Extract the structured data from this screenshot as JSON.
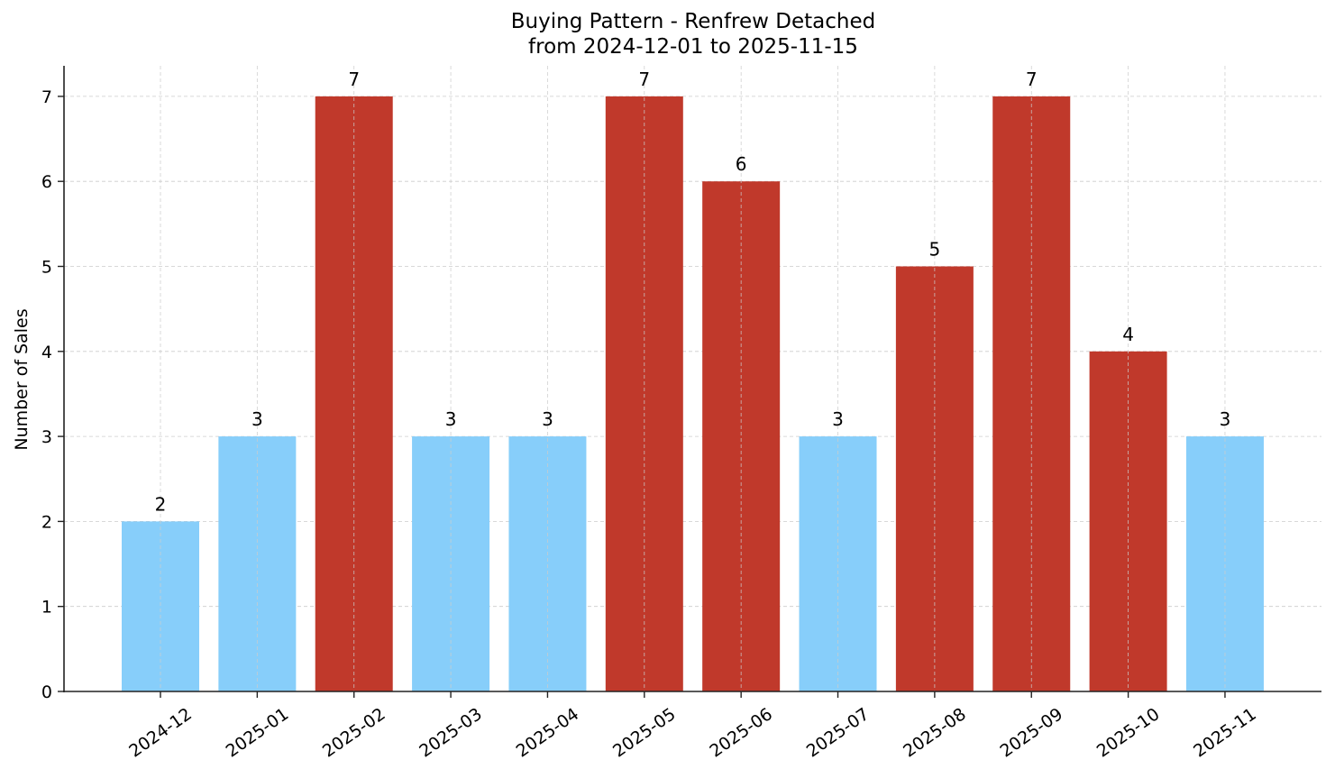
{
  "chart_data": {
    "type": "bar",
    "title": "Buying Pattern - Renfrew Detached",
    "subtitle": "from 2024-12-01 to 2025-11-15",
    "xlabel": "",
    "ylabel": "Number of Sales",
    "categories": [
      "2024-12",
      "2025-01",
      "2025-02",
      "2025-03",
      "2025-04",
      "2025-05",
      "2025-06",
      "2025-07",
      "2025-08",
      "2025-09",
      "2025-10",
      "2025-11"
    ],
    "values": [
      2,
      3,
      7,
      3,
      3,
      7,
      6,
      3,
      5,
      7,
      4,
      3
    ],
    "bar_colors": [
      "#87CEFA",
      "#87CEFA",
      "#C0392B",
      "#87CEFA",
      "#87CEFA",
      "#C0392B",
      "#C0392B",
      "#87CEFA",
      "#C0392B",
      "#C0392B",
      "#C0392B",
      "#87CEFA"
    ],
    "colors": {
      "low": "#87CEFA",
      "high": "#C0392B"
    },
    "yticks": [
      0,
      1,
      2,
      3,
      4,
      5,
      6,
      7
    ],
    "ylim": [
      0,
      7.35
    ],
    "grid": true,
    "data_labels": true,
    "legend": null
  }
}
